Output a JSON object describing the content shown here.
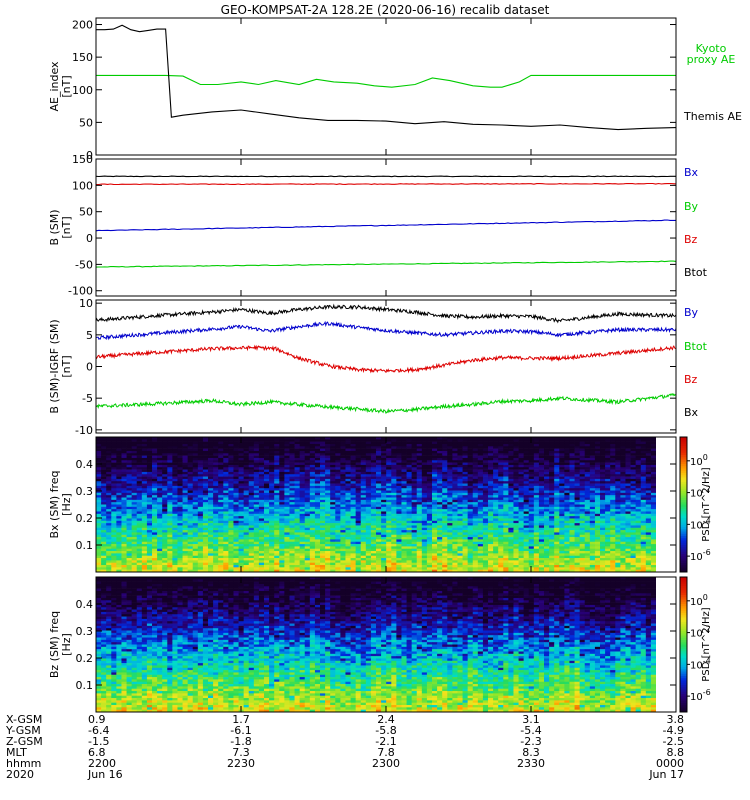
{
  "title": "GEO-KOMPSAT-2A 128.2E (2020-06-16) recalib dataset",
  "colors": {
    "black": "#000000",
    "green": "#00cc00",
    "red": "#dd0000",
    "blue": "#0000cc"
  },
  "chart_data": [
    {
      "type": "line",
      "ylabel": "AE_index [nT]",
      "ylim": [
        0,
        210
      ],
      "yticks": [
        "0",
        "50",
        "100",
        "150",
        "200"
      ],
      "ytick_values": [
        0,
        50,
        100,
        150,
        200
      ],
      "x_range": [
        2200,
        2400
      ],
      "series": [
        {
          "name": "Kyoto proxy AE",
          "color": "#00cc00",
          "x": [
            2200,
            2210,
            2220,
            2224,
            2230,
            2236,
            2242,
            2250,
            2256,
            2262,
            2270,
            2276,
            2282,
            2290,
            2296,
            2302,
            2310,
            2316,
            2322,
            2330,
            2336,
            2340,
            2346,
            2350,
            2360,
            2370,
            2380,
            2390,
            2400
          ],
          "y": [
            122,
            122,
            122,
            122,
            121,
            108,
            108,
            112,
            108,
            114,
            108,
            116,
            112,
            110,
            106,
            104,
            108,
            118,
            114,
            106,
            104,
            104,
            112,
            122,
            122,
            122,
            122,
            122,
            122
          ]
        },
        {
          "name": "Themis AE",
          "color": "#000000",
          "x": [
            2200,
            2203,
            2206,
            2209,
            2212,
            2215,
            2218,
            2221,
            2224,
            2226,
            2230,
            2240,
            2250,
            2260,
            2270,
            2280,
            2290,
            2300,
            2310,
            2320,
            2330,
            2340,
            2350,
            2360,
            2370,
            2380,
            2390,
            2400
          ],
          "y": [
            192,
            192,
            193,
            199,
            192,
            189,
            191,
            193,
            193,
            58,
            61,
            66,
            69,
            63,
            57,
            53,
            53,
            52,
            48,
            51,
            47,
            46,
            44,
            46,
            42,
            39,
            41,
            42
          ]
        }
      ]
    },
    {
      "type": "line",
      "ylabel": "B (SM) [nT]",
      "ylim": [
        -110,
        150
      ],
      "yticks": [
        "-100",
        "-50",
        "0",
        "50",
        "100",
        "150"
      ],
      "ytick_values": [
        -100,
        -50,
        0,
        50,
        100,
        150
      ],
      "x_range": [
        2200,
        2400
      ],
      "series": [
        {
          "name": "Bx",
          "color": "#000000",
          "x": [
            2200,
            2400
          ],
          "y": [
            117,
            117
          ]
        },
        {
          "name": "By",
          "color": "#00cc00",
          "x": [
            2200,
            2400
          ],
          "y": [
            -55,
            -44
          ]
        },
        {
          "name": "Bz",
          "color": "#dd0000",
          "x": [
            2200,
            2400
          ],
          "y": [
            102,
            103
          ]
        },
        {
          "name": "Btot",
          "color": "#0000cc",
          "x": [
            2200,
            2400
          ],
          "y": [
            14,
            34
          ]
        }
      ]
    },
    {
      "type": "line",
      "ylabel": "B (SM)-IGRF (SM) [nT]",
      "ylim": [
        -10.5,
        10.5
      ],
      "yticks": [
        "-10",
        "-5",
        "0",
        "5",
        "10"
      ],
      "ytick_values": [
        -10,
        -5,
        0,
        5,
        10
      ],
      "x_range": [
        2200,
        2400
      ],
      "series": [
        {
          "name": "Bx",
          "color": "#000000",
          "x": [
            2200,
            2220,
            2240,
            2250,
            2260,
            2270,
            2280,
            2290,
            2300,
            2310,
            2320,
            2330,
            2340,
            2350,
            2360,
            2380,
            2400
          ],
          "y": [
            7.3,
            8.0,
            8.6,
            9.0,
            8.4,
            9.0,
            9.4,
            9.4,
            9.0,
            8.6,
            8.0,
            7.8,
            8.0,
            7.9,
            7.2,
            8.3,
            8.0
          ]
        },
        {
          "name": "By",
          "color": "#0000cc",
          "x": [
            2200,
            2220,
            2240,
            2250,
            2260,
            2270,
            2280,
            2290,
            2300,
            2310,
            2320,
            2330,
            2340,
            2350,
            2360,
            2380,
            2400
          ],
          "y": [
            4.5,
            5.2,
            5.9,
            6.3,
            5.6,
            6.3,
            6.8,
            6.2,
            5.7,
            5.3,
            5.0,
            5.3,
            5.6,
            5.5,
            5.0,
            5.8,
            5.8
          ]
        },
        {
          "name": "Bz",
          "color": "#dd0000",
          "x": [
            2200,
            2220,
            2240,
            2255,
            2262,
            2270,
            2280,
            2290,
            2300,
            2310,
            2320,
            2330,
            2340,
            2350,
            2360,
            2380,
            2400
          ],
          "y": [
            1.5,
            2.2,
            2.8,
            3.0,
            2.8,
            1.3,
            0.1,
            -0.5,
            -0.7,
            -0.5,
            0.2,
            1.0,
            1.4,
            1.3,
            1.3,
            2.1,
            3.0
          ]
        },
        {
          "name": "Btot",
          "color": "#00cc00",
          "x": [
            2200,
            2220,
            2240,
            2250,
            2260,
            2270,
            2280,
            2290,
            2300,
            2310,
            2320,
            2330,
            2340,
            2350,
            2360,
            2380,
            2400
          ],
          "y": [
            -6.3,
            -5.9,
            -5.4,
            -6.0,
            -5.6,
            -6.0,
            -6.4,
            -6.7,
            -7.1,
            -6.8,
            -6.3,
            -6.0,
            -5.5,
            -5.4,
            -5.0,
            -5.6,
            -4.5
          ]
        }
      ]
    },
    {
      "type": "heatmap",
      "ylabel": "Bx (SM) freq [Hz]",
      "ylim": [
        0,
        0.5
      ],
      "yticks": [
        "0.1",
        "0.2",
        "0.3",
        "0.4"
      ],
      "ytick_values": [
        0.1,
        0.2,
        0.3,
        0.4
      ],
      "colorbar_label": "PSD [nT^2/Hz]",
      "colorbar_ticks": [
        "10^0",
        "10^-2",
        "10^-4",
        "10^-6"
      ],
      "colorbar_tick_exponents": [
        0,
        -2,
        -4,
        -6
      ],
      "colorbar_range_exponents": [
        -7,
        1.5
      ]
    },
    {
      "type": "heatmap",
      "ylabel": "Bz (SM) freq [Hz]",
      "ylim": [
        0,
        0.5
      ],
      "yticks": [
        "0.1",
        "0.2",
        "0.3",
        "0.4"
      ],
      "ytick_values": [
        0.1,
        0.2,
        0.3,
        0.4
      ],
      "colorbar_label": "PSD [nT^2/Hz]",
      "colorbar_ticks": [
        "10^0",
        "10^-2",
        "10^-4",
        "10^-6"
      ],
      "colorbar_tick_exponents": [
        0,
        -2,
        -4,
        -6
      ],
      "colorbar_range_exponents": [
        -7,
        1.5
      ]
    }
  ],
  "time_axis": {
    "x_range": [
      2200,
      2400
    ],
    "tick_minutes": [
      2200,
      2250,
      2300,
      2350,
      2400
    ],
    "row_labels": [
      "X-GSM",
      "Y-GSM",
      "Z-GSM",
      "MLT",
      "hhmm",
      "2020"
    ],
    "columns": [
      [
        "0.9",
        "-6.4",
        "-1.5",
        "6.8",
        "2200",
        "Jun 16"
      ],
      [
        "1.7",
        "-6.1",
        "-1.8",
        "7.3",
        "2230",
        ""
      ],
      [
        "2.4",
        "-5.8",
        "-2.1",
        "7.8",
        "2300",
        ""
      ],
      [
        "3.1",
        "-5.4",
        "-2.3",
        "8.3",
        "2330",
        ""
      ],
      [
        "3.8",
        "-4.9",
        "-2.5",
        "8.8",
        "0000",
        "Jun 17"
      ]
    ]
  }
}
